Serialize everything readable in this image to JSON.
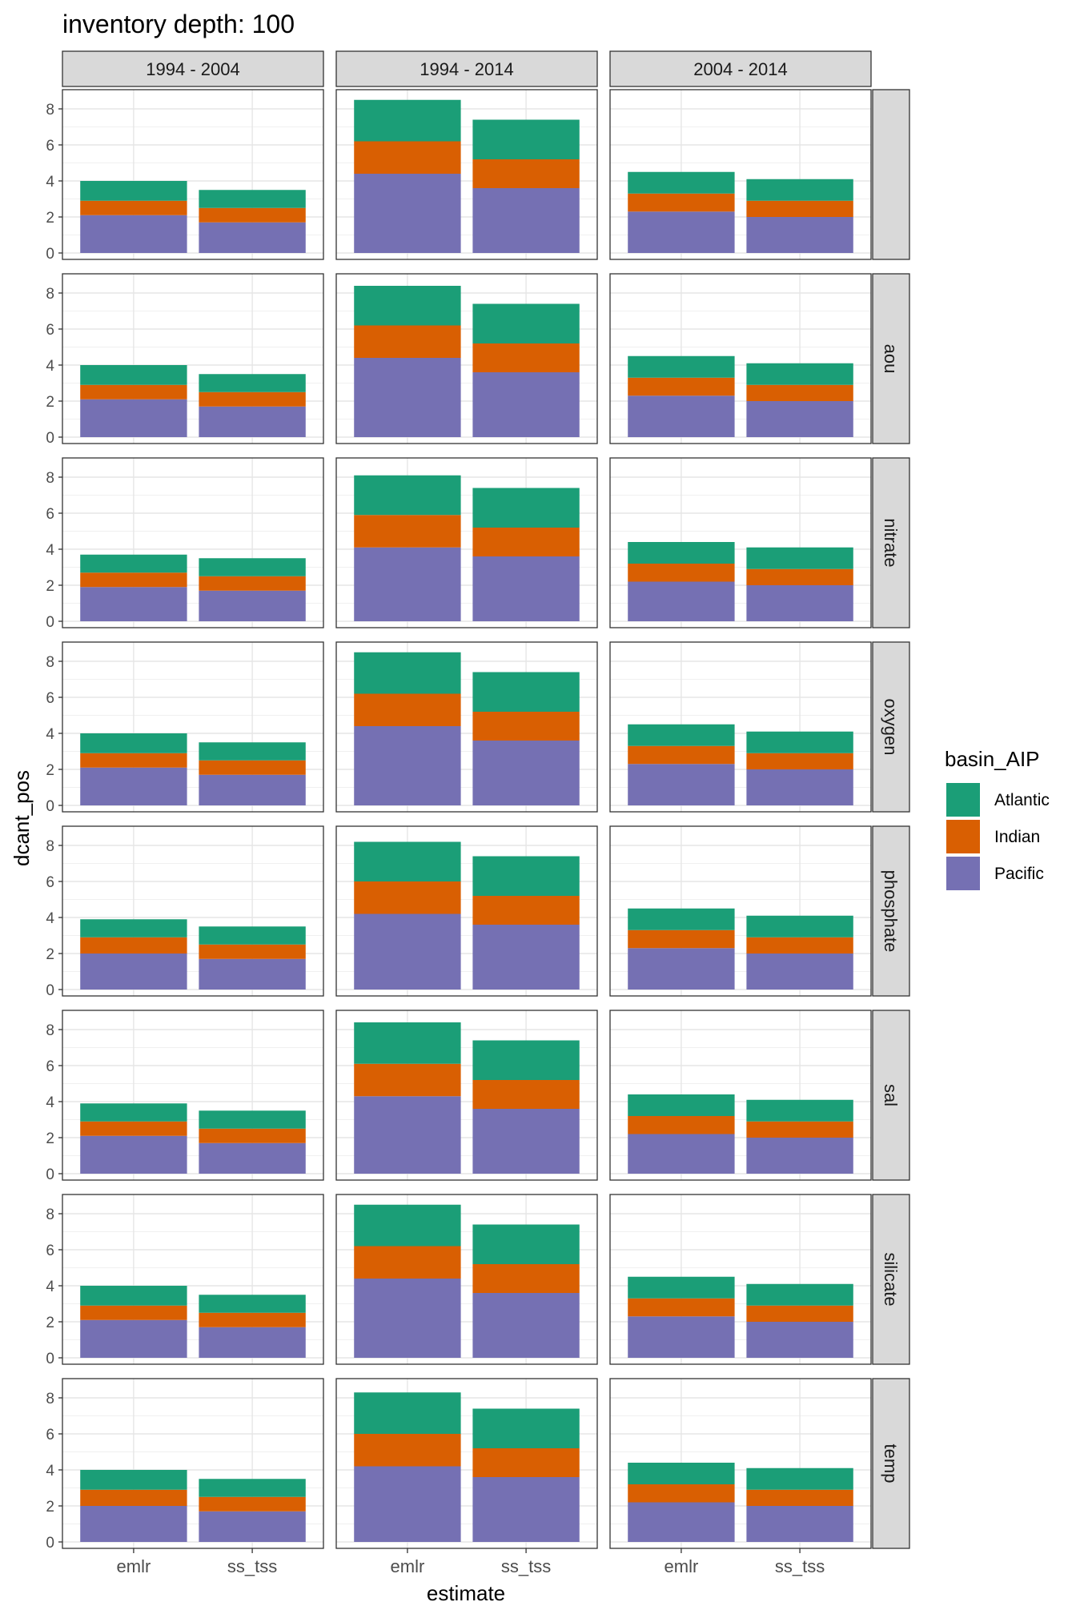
{
  "chart_data": {
    "type": "bar",
    "stacked": true,
    "title": "inventory depth: 100",
    "xlabel": "estimate",
    "ylabel": "dcant_pos",
    "ylim": [
      0,
      8.8
    ],
    "yticks": [
      0,
      2,
      4,
      6,
      8
    ],
    "grid": true,
    "legend": {
      "title": "basin_AIP",
      "placement": "right",
      "entries": [
        "Atlantic",
        "Indian",
        "Pacific"
      ]
    },
    "colors": {
      "Atlantic": "#1b9e77",
      "Indian": "#d95f02",
      "Pacific": "#7570b3"
    },
    "categories": [
      "emlr",
      "ss_tss"
    ],
    "col_facets": [
      "1994 - 2004",
      "1994 - 2014",
      "2004 - 2014"
    ],
    "row_facets": [
      "",
      "aou",
      "nitrate",
      "oxygen",
      "phosphate",
      "sal",
      "silicate",
      "temp"
    ],
    "panels": [
      {
        "row": 0,
        "col": 0,
        "bars": [
          {
            "Pacific": 2.1,
            "Indian": 0.8,
            "Atlantic": 1.1
          },
          {
            "Pacific": 1.7,
            "Indian": 0.8,
            "Atlantic": 1.0
          }
        ]
      },
      {
        "row": 0,
        "col": 1,
        "bars": [
          {
            "Pacific": 4.4,
            "Indian": 1.8,
            "Atlantic": 2.3
          },
          {
            "Pacific": 3.6,
            "Indian": 1.6,
            "Atlantic": 2.2
          }
        ]
      },
      {
        "row": 0,
        "col": 2,
        "bars": [
          {
            "Pacific": 2.3,
            "Indian": 1.0,
            "Atlantic": 1.2
          },
          {
            "Pacific": 2.0,
            "Indian": 0.9,
            "Atlantic": 1.2
          }
        ]
      },
      {
        "row": 1,
        "col": 0,
        "bars": [
          {
            "Pacific": 2.1,
            "Indian": 0.8,
            "Atlantic": 1.1
          },
          {
            "Pacific": 1.7,
            "Indian": 0.8,
            "Atlantic": 1.0
          }
        ]
      },
      {
        "row": 1,
        "col": 1,
        "bars": [
          {
            "Pacific": 4.4,
            "Indian": 1.8,
            "Atlantic": 2.2
          },
          {
            "Pacific": 3.6,
            "Indian": 1.6,
            "Atlantic": 2.2
          }
        ]
      },
      {
        "row": 1,
        "col": 2,
        "bars": [
          {
            "Pacific": 2.3,
            "Indian": 1.0,
            "Atlantic": 1.2
          },
          {
            "Pacific": 2.0,
            "Indian": 0.9,
            "Atlantic": 1.2
          }
        ]
      },
      {
        "row": 2,
        "col": 0,
        "bars": [
          {
            "Pacific": 1.9,
            "Indian": 0.8,
            "Atlantic": 1.0
          },
          {
            "Pacific": 1.7,
            "Indian": 0.8,
            "Atlantic": 1.0
          }
        ]
      },
      {
        "row": 2,
        "col": 1,
        "bars": [
          {
            "Pacific": 4.1,
            "Indian": 1.8,
            "Atlantic": 2.2
          },
          {
            "Pacific": 3.6,
            "Indian": 1.6,
            "Atlantic": 2.2
          }
        ]
      },
      {
        "row": 2,
        "col": 2,
        "bars": [
          {
            "Pacific": 2.2,
            "Indian": 1.0,
            "Atlantic": 1.2
          },
          {
            "Pacific": 2.0,
            "Indian": 0.9,
            "Atlantic": 1.2
          }
        ]
      },
      {
        "row": 3,
        "col": 0,
        "bars": [
          {
            "Pacific": 2.1,
            "Indian": 0.8,
            "Atlantic": 1.1
          },
          {
            "Pacific": 1.7,
            "Indian": 0.8,
            "Atlantic": 1.0
          }
        ]
      },
      {
        "row": 3,
        "col": 1,
        "bars": [
          {
            "Pacific": 4.4,
            "Indian": 1.8,
            "Atlantic": 2.3
          },
          {
            "Pacific": 3.6,
            "Indian": 1.6,
            "Atlantic": 2.2
          }
        ]
      },
      {
        "row": 3,
        "col": 2,
        "bars": [
          {
            "Pacific": 2.3,
            "Indian": 1.0,
            "Atlantic": 1.2
          },
          {
            "Pacific": 2.0,
            "Indian": 0.9,
            "Atlantic": 1.2
          }
        ]
      },
      {
        "row": 4,
        "col": 0,
        "bars": [
          {
            "Pacific": 2.0,
            "Indian": 0.9,
            "Atlantic": 1.0
          },
          {
            "Pacific": 1.7,
            "Indian": 0.8,
            "Atlantic": 1.0
          }
        ]
      },
      {
        "row": 4,
        "col": 1,
        "bars": [
          {
            "Pacific": 4.2,
            "Indian": 1.8,
            "Atlantic": 2.2
          },
          {
            "Pacific": 3.6,
            "Indian": 1.6,
            "Atlantic": 2.2
          }
        ]
      },
      {
        "row": 4,
        "col": 2,
        "bars": [
          {
            "Pacific": 2.3,
            "Indian": 1.0,
            "Atlantic": 1.2
          },
          {
            "Pacific": 2.0,
            "Indian": 0.9,
            "Atlantic": 1.2
          }
        ]
      },
      {
        "row": 5,
        "col": 0,
        "bars": [
          {
            "Pacific": 2.1,
            "Indian": 0.8,
            "Atlantic": 1.0
          },
          {
            "Pacific": 1.7,
            "Indian": 0.8,
            "Atlantic": 1.0
          }
        ]
      },
      {
        "row": 5,
        "col": 1,
        "bars": [
          {
            "Pacific": 4.3,
            "Indian": 1.8,
            "Atlantic": 2.3
          },
          {
            "Pacific": 3.6,
            "Indian": 1.6,
            "Atlantic": 2.2
          }
        ]
      },
      {
        "row": 5,
        "col": 2,
        "bars": [
          {
            "Pacific": 2.2,
            "Indian": 1.0,
            "Atlantic": 1.2
          },
          {
            "Pacific": 2.0,
            "Indian": 0.9,
            "Atlantic": 1.2
          }
        ]
      },
      {
        "row": 6,
        "col": 0,
        "bars": [
          {
            "Pacific": 2.1,
            "Indian": 0.8,
            "Atlantic": 1.1
          },
          {
            "Pacific": 1.7,
            "Indian": 0.8,
            "Atlantic": 1.0
          }
        ]
      },
      {
        "row": 6,
        "col": 1,
        "bars": [
          {
            "Pacific": 4.4,
            "Indian": 1.8,
            "Atlantic": 2.3
          },
          {
            "Pacific": 3.6,
            "Indian": 1.6,
            "Atlantic": 2.2
          }
        ]
      },
      {
        "row": 6,
        "col": 2,
        "bars": [
          {
            "Pacific": 2.3,
            "Indian": 1.0,
            "Atlantic": 1.2
          },
          {
            "Pacific": 2.0,
            "Indian": 0.9,
            "Atlantic": 1.2
          }
        ]
      },
      {
        "row": 7,
        "col": 0,
        "bars": [
          {
            "Pacific": 2.0,
            "Indian": 0.9,
            "Atlantic": 1.1
          },
          {
            "Pacific": 1.7,
            "Indian": 0.8,
            "Atlantic": 1.0
          }
        ]
      },
      {
        "row": 7,
        "col": 1,
        "bars": [
          {
            "Pacific": 4.2,
            "Indian": 1.8,
            "Atlantic": 2.3
          },
          {
            "Pacific": 3.6,
            "Indian": 1.6,
            "Atlantic": 2.2
          }
        ]
      },
      {
        "row": 7,
        "col": 2,
        "bars": [
          {
            "Pacific": 2.2,
            "Indian": 1.0,
            "Atlantic": 1.2
          },
          {
            "Pacific": 2.0,
            "Indian": 0.9,
            "Atlantic": 1.2
          }
        ]
      }
    ]
  }
}
